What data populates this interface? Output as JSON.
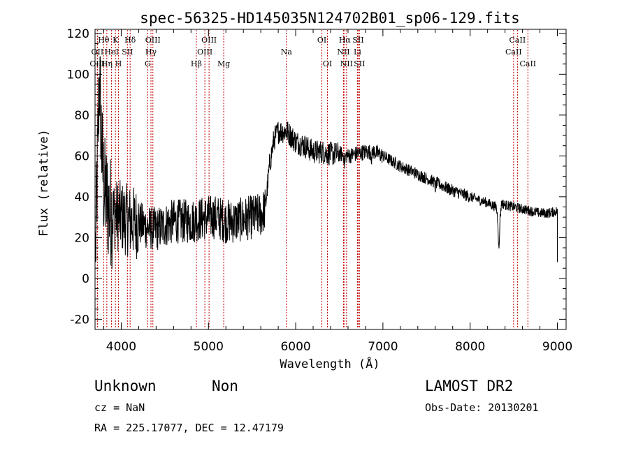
{
  "chart_data": {
    "type": "line",
    "title": "spec-56325-HD145035N124702B01_sp06-129.fits",
    "xlabel": "Wavelength (Å)",
    "ylabel": "Flux (relative)",
    "xlim": [
      3700,
      9100
    ],
    "ylim": [
      -25,
      122
    ],
    "x_ticks": [
      4000,
      5000,
      6000,
      7000,
      8000,
      9000
    ],
    "y_ticks": [
      -20,
      0,
      20,
      40,
      60,
      80,
      100,
      120
    ],
    "spectrum_anchors": {
      "x": [
        3700,
        3720,
        3750,
        3780,
        3800,
        3850,
        3900,
        4000,
        4100,
        4200,
        4300,
        4400,
        4500,
        4600,
        4700,
        4800,
        4900,
        5000,
        5100,
        5200,
        5300,
        5400,
        5500,
        5600,
        5650,
        5700,
        5750,
        5800,
        5900,
        6000,
        6100,
        6200,
        6300,
        6400,
        6500,
        6600,
        6700,
        6800,
        6900,
        7000,
        7200,
        7400,
        7600,
        7800,
        8000,
        8200,
        8300,
        8330,
        8360,
        8400,
        8500,
        8600,
        8700,
        8800,
        8900,
        9000
      ],
      "y": [
        5,
        40,
        100,
        60,
        45,
        35,
        32,
        30,
        28,
        27,
        25,
        24,
        26,
        28,
        28,
        28,
        29,
        30,
        30,
        28,
        28,
        29,
        30,
        31,
        34,
        55,
        68,
        72,
        72,
        67,
        65,
        62,
        62,
        61,
        61,
        60,
        61,
        62,
        62,
        60,
        55,
        51,
        47,
        43,
        40,
        37,
        35,
        24,
        37,
        36,
        35,
        34,
        33,
        32,
        32,
        33
      ]
    },
    "absorption_features": [
      {
        "x": 6563,
        "depth": 5
      },
      {
        "x": 6870,
        "depth": 3
      },
      {
        "x": 7600,
        "depth": 3
      },
      {
        "x": 8330,
        "depth": 12
      }
    ],
    "line_markers": [
      {
        "label": "Hθ",
        "x": 3798,
        "row": 1
      },
      {
        "label": "OII",
        "x": 3727,
        "row": 2
      },
      {
        "label": "OIII",
        "x": 3727,
        "row": 3
      },
      {
        "label": "HeI",
        "x": 3889,
        "row": 2
      },
      {
        "label": "Hη",
        "x": 3835,
        "row": 3
      },
      {
        "label": "K",
        "x": 3934,
        "row": 1
      },
      {
        "label": "H",
        "x": 3969,
        "row": 3
      },
      {
        "label": "SII",
        "x": 4071,
        "row": 2
      },
      {
        "label": "Hδ",
        "x": 4102,
        "row": 1
      },
      {
        "label": "OIII",
        "x": 4363,
        "row": 1
      },
      {
        "label": "Hγ",
        "x": 4341,
        "row": 2
      },
      {
        "label": "G",
        "x": 4304,
        "row": 3
      },
      {
        "label": "Hβ",
        "x": 4861,
        "row": 3
      },
      {
        "label": "OIII",
        "x": 4959,
        "row": 2
      },
      {
        "label": "OIII",
        "x": 5007,
        "row": 1
      },
      {
        "label": "Mg",
        "x": 5175,
        "row": 3
      },
      {
        "label": "Na",
        "x": 5894,
        "row": 2
      },
      {
        "label": "OI",
        "x": 6300,
        "row": 1
      },
      {
        "label": "OI",
        "x": 6364,
        "row": 3
      },
      {
        "label": "Hα",
        "x": 6563,
        "row": 1
      },
      {
        "label": "NII",
        "x": 6548,
        "row": 2
      },
      {
        "label": "NII",
        "x": 6583,
        "row": 3
      },
      {
        "label": "SII",
        "x": 6716,
        "row": 1
      },
      {
        "label": "Li",
        "x": 6708,
        "row": 2
      },
      {
        "label": "SII",
        "x": 6731,
        "row": 3
      },
      {
        "label": "CaII",
        "x": 8542,
        "row": 1
      },
      {
        "label": "CaII",
        "x": 8498,
        "row": 2
      },
      {
        "label": "CaII",
        "x": 8662,
        "row": 3
      }
    ],
    "line_color": "#000000",
    "marker_color": "#c00000"
  },
  "info": {
    "object_class": "Unknown",
    "object_subclass": "Non",
    "cz": "cz = NaN",
    "coords": "RA = 225.17077, DEC =  12.47179",
    "survey": "LAMOST DR2",
    "obs_date": "Obs-Date: 20130201"
  }
}
